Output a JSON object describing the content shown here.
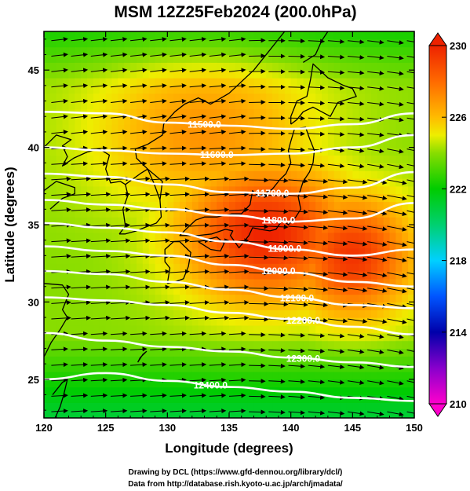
{
  "title": "MSM 12Z25Feb2024 (200.0hPa)",
  "credits": {
    "line1": "Drawing by DCL (https://www.gfd-dennou.org/library/dcl/)",
    "line2": "Data from http://database.rish.kyoto-u.ac.jp/arch/jmadata/"
  },
  "chart_data": {
    "type": "heatmap",
    "subtype": "weather map: temperature shading, geopotential height contours, wind vectors",
    "xlabel": "Longitude (degrees)",
    "ylabel": "Latitude  (degrees)",
    "xlim": [
      120,
      150
    ],
    "ylim": [
      22.5,
      47.5
    ],
    "x_ticks": [
      120,
      125,
      130,
      135,
      140,
      145,
      150
    ],
    "y_ticks": [
      25,
      30,
      35,
      40,
      45
    ],
    "colorbar": {
      "range": [
        210,
        230
      ],
      "ticks": [
        210,
        214,
        218,
        222,
        226,
        230
      ],
      "stops": [
        {
          "value": 210,
          "color": "#ff00cc"
        },
        {
          "value": 212,
          "color": "#8800cc"
        },
        {
          "value": 214,
          "color": "#0000aa"
        },
        {
          "value": 216,
          "color": "#0055ff"
        },
        {
          "value": 218,
          "color": "#00d0ff"
        },
        {
          "value": 220,
          "color": "#00d070"
        },
        {
          "value": 222,
          "color": "#00cc00"
        },
        {
          "value": 224,
          "color": "#88dd00"
        },
        {
          "value": 225,
          "color": "#eeee00"
        },
        {
          "value": 226,
          "color": "#ffbb00"
        },
        {
          "value": 228,
          "color": "#ff6a00"
        },
        {
          "value": 230,
          "color": "#ee2200"
        }
      ]
    },
    "contours": [
      {
        "label": "11500.0",
        "points": [
          [
            120,
            42.3
          ],
          [
            125,
            42.2
          ],
          [
            130,
            41.6
          ],
          [
            135,
            41.4
          ],
          [
            140,
            41.2
          ],
          [
            145,
            41.5
          ],
          [
            150,
            42.2
          ]
        ]
      },
      {
        "label": "11600.0",
        "points": [
          [
            120,
            40.0
          ],
          [
            125,
            39.8
          ],
          [
            130,
            39.6
          ],
          [
            135,
            39.5
          ],
          [
            140,
            39.6
          ],
          [
            145,
            40.0
          ],
          [
            150,
            40.8
          ]
        ]
      },
      {
        "label": "11700.0",
        "points": [
          [
            120,
            38.3
          ],
          [
            125,
            38.1
          ],
          [
            130,
            37.6
          ],
          [
            135,
            37.1
          ],
          [
            140,
            37.0
          ],
          [
            145,
            37.4
          ],
          [
            150,
            38.4
          ]
        ]
      },
      {
        "label": "11800.0",
        "points": [
          [
            120,
            36.6
          ],
          [
            125,
            36.3
          ],
          [
            130,
            36.0
          ],
          [
            135,
            35.6
          ],
          [
            140,
            35.2
          ],
          [
            145,
            35.4
          ],
          [
            150,
            36.4
          ]
        ]
      },
      {
        "label": "11900.0",
        "points": [
          [
            120,
            35.1
          ],
          [
            125,
            34.8
          ],
          [
            130,
            34.5
          ],
          [
            135,
            33.9
          ],
          [
            140,
            33.4
          ],
          [
            145,
            33.0
          ],
          [
            150,
            33.4
          ]
        ]
      },
      {
        "label": "12000.0",
        "points": [
          [
            120,
            33.6
          ],
          [
            125,
            33.3
          ],
          [
            130,
            33.0
          ],
          [
            135,
            32.4
          ],
          [
            140,
            31.9
          ],
          [
            145,
            31.3
          ],
          [
            150,
            31.0
          ]
        ]
      },
      {
        "label": "12100.0",
        "points": [
          [
            120,
            32.0
          ],
          [
            125,
            31.8
          ],
          [
            130,
            31.3
          ],
          [
            135,
            30.8
          ],
          [
            140,
            30.3
          ],
          [
            145,
            29.8
          ],
          [
            150,
            29.6
          ]
        ]
      },
      {
        "label": "12200.0",
        "points": [
          [
            120,
            30.3
          ],
          [
            125,
            30.1
          ],
          [
            130,
            29.8
          ],
          [
            135,
            29.3
          ],
          [
            140,
            28.9
          ],
          [
            145,
            28.4
          ],
          [
            150,
            27.9
          ]
        ]
      },
      {
        "label": "12300.0",
        "points": [
          [
            120,
            28.0
          ],
          [
            125,
            27.5
          ],
          [
            130,
            27.1
          ],
          [
            135,
            26.8
          ],
          [
            140,
            26.4
          ],
          [
            145,
            26.1
          ],
          [
            150,
            25.8
          ]
        ]
      },
      {
        "label": "12400.0",
        "points": [
          [
            120,
            25.0
          ],
          [
            125,
            25.4
          ],
          [
            130,
            24.9
          ],
          [
            135,
            24.5
          ],
          [
            140,
            24.2
          ],
          [
            145,
            23.8
          ],
          [
            150,
            23.6
          ]
        ]
      }
    ],
    "temperature_field": {
      "background": 224,
      "warm_cores": [
        {
          "lon": 138.0,
          "lat": 34.5,
          "value": 230,
          "spread_lon": 7.0,
          "spread_lat": 4.5
        },
        {
          "lon": 145.0,
          "lat": 33.0,
          "value": 229.5,
          "spread_lon": 5.0,
          "spread_lat": 4.0
        },
        {
          "lon": 133.0,
          "lat": 41.0,
          "value": 227,
          "spread_lon": 9.0,
          "spread_lat": 5.0
        }
      ]
    }
  }
}
